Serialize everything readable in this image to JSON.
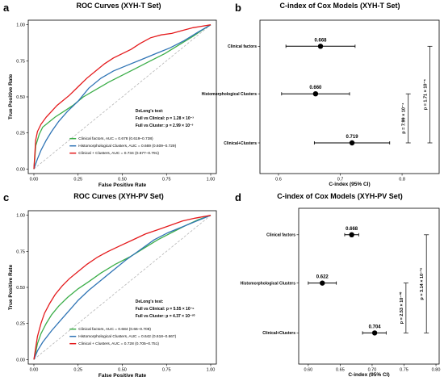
{
  "chart_data": [
    {
      "panel": "a",
      "type": "line",
      "title": "ROC Curves (XYH-T Set)",
      "xlabel": "False Positive Rate",
      "ylabel": "True Positive Rate",
      "xlim": [
        0,
        1
      ],
      "ylim": [
        0,
        1
      ],
      "xticks": [
        "0.00",
        "0.25",
        "0.50",
        "0.75",
        "1.00"
      ],
      "yticks": [
        "0.00",
        "0.25",
        "0.50",
        "0.75",
        "1.00"
      ],
      "legend_position": "bottom-right",
      "delong_title": "DeLong's test:",
      "delong_lines": [
        "Full vs Clinical: p = 1.28 × 10⁻³",
        "Full vs Cluster: p = 2.99 × 10⁻³"
      ],
      "diagonal": true,
      "series": [
        {
          "name": "Clinical factors, AUC = 0.678 (0.619–0.738)",
          "color": "#3cae49",
          "x": [
            0,
            0.005,
            0.01,
            0.03,
            0.05,
            0.08,
            0.12,
            0.17,
            0.22,
            0.28,
            0.35,
            0.42,
            0.5,
            0.58,
            0.66,
            0.74,
            0.82,
            0.9,
            0.96,
            1.0
          ],
          "y": [
            0,
            0.07,
            0.16,
            0.24,
            0.29,
            0.32,
            0.36,
            0.4,
            0.44,
            0.5,
            0.55,
            0.6,
            0.65,
            0.7,
            0.75,
            0.8,
            0.86,
            0.92,
            0.97,
            1.0
          ]
        },
        {
          "name": "Histomorphological Clusters, AUC = 0.669 (0.609–0.729)",
          "color": "#2f74b5",
          "x": [
            0,
            0.02,
            0.04,
            0.07,
            0.1,
            0.14,
            0.19,
            0.25,
            0.31,
            0.38,
            0.45,
            0.53,
            0.61,
            0.69,
            0.77,
            0.85,
            0.93,
            1.0
          ],
          "y": [
            0,
            0.07,
            0.13,
            0.2,
            0.26,
            0.33,
            0.4,
            0.47,
            0.56,
            0.63,
            0.68,
            0.72,
            0.76,
            0.8,
            0.84,
            0.89,
            0.95,
            1.0
          ]
        },
        {
          "name": "Clinical + Clusters, AUC = 0.734 (0.677–0.791)",
          "color": "#e41a1c",
          "x": [
            0,
            0.005,
            0.01,
            0.02,
            0.04,
            0.07,
            0.1,
            0.13,
            0.16,
            0.2,
            0.25,
            0.3,
            0.35,
            0.4,
            0.45,
            0.5,
            0.55,
            0.6,
            0.66,
            0.72,
            0.78,
            0.84,
            0.9,
            0.95,
            1.0
          ],
          "y": [
            0,
            0.1,
            0.2,
            0.26,
            0.31,
            0.36,
            0.4,
            0.44,
            0.47,
            0.51,
            0.57,
            0.63,
            0.68,
            0.73,
            0.77,
            0.8,
            0.83,
            0.87,
            0.91,
            0.93,
            0.94,
            0.96,
            0.98,
            0.99,
            1.0
          ]
        }
      ]
    },
    {
      "panel": "b",
      "type": "scatter",
      "title": "C-index of Cox Models (XYH-T Set)",
      "xlabel": "C-index (95% CI)",
      "xlim": [
        0.57,
        0.86
      ],
      "xticks": [
        0.6,
        0.7,
        0.8
      ],
      "categories": [
        "Clinical factors",
        "Histomorphological Clusters",
        "Clinical+Clusters"
      ],
      "values": [
        0.668,
        0.66,
        0.719
      ],
      "value_labels": [
        "0.668",
        "0.660",
        "0.719"
      ],
      "ci_low": [
        0.612,
        0.605,
        0.658
      ],
      "ci_high": [
        0.724,
        0.715,
        0.78
      ],
      "brackets": [
        {
          "from": "Histomorphological Clusters",
          "to": "Clinical+Clusters",
          "label": "p = 7.99 × 10⁻⁴",
          "x": 0.81
        },
        {
          "from": "Clinical factors",
          "to": "Clinical+Clusters",
          "label": "p = 1.71 × 10⁻⁶",
          "x": 0.845
        }
      ]
    },
    {
      "panel": "c",
      "type": "line",
      "title": "ROC Curves (XYH-PV Set)",
      "xlabel": "False Positive Rate",
      "ylabel": "True Positive Rate",
      "xlim": [
        0,
        1
      ],
      "ylim": [
        0,
        1
      ],
      "xticks": [
        "0.00",
        "0.25",
        "0.50",
        "0.75",
        "1.00"
      ],
      "yticks": [
        "0.00",
        "0.25",
        "0.50",
        "0.75",
        "1.00"
      ],
      "legend_position": "bottom-right",
      "delong_title": "DeLong's test:",
      "delong_lines": [
        "Full vs Clinical: p = 5.55 × 10⁻⁶",
        "Full vs Cluster: p = 4.37 × 10⁻¹⁰"
      ],
      "diagonal": true,
      "series": [
        {
          "name": "Clinical factors, AUC = 0.684 (0.66–0.708)",
          "color": "#3cae49",
          "x": [
            0,
            0.01,
            0.02,
            0.04,
            0.07,
            0.1,
            0.14,
            0.19,
            0.25,
            0.31,
            0.38,
            0.46,
            0.54,
            0.62,
            0.7,
            0.78,
            0.86,
            0.93,
            1.0
          ],
          "y": [
            0,
            0.05,
            0.11,
            0.18,
            0.25,
            0.31,
            0.37,
            0.43,
            0.49,
            0.54,
            0.6,
            0.66,
            0.71,
            0.77,
            0.83,
            0.88,
            0.93,
            0.97,
            1.0
          ]
        },
        {
          "name": "Histomorphological Clusters, AUC = 0.642 (0.618–0.667)",
          "color": "#2f74b5",
          "x": [
            0,
            0.02,
            0.05,
            0.1,
            0.15,
            0.2,
            0.25,
            0.31,
            0.38,
            0.45,
            0.52,
            0.6,
            0.68,
            0.76,
            0.84,
            0.92,
            1.0
          ],
          "y": [
            0,
            0.06,
            0.12,
            0.2,
            0.27,
            0.34,
            0.41,
            0.48,
            0.55,
            0.62,
            0.69,
            0.76,
            0.83,
            0.88,
            0.92,
            0.96,
            1.0
          ]
        },
        {
          "name": "Clinical + Clusters, AUC = 0.728 (0.705–0.751)",
          "color": "#e41a1c",
          "x": [
            0,
            0.01,
            0.02,
            0.04,
            0.06,
            0.09,
            0.12,
            0.16,
            0.2,
            0.25,
            0.3,
            0.36,
            0.42,
            0.49,
            0.56,
            0.63,
            0.7,
            0.77,
            0.84,
            0.91,
            1.0
          ],
          "y": [
            0,
            0.08,
            0.16,
            0.25,
            0.32,
            0.39,
            0.45,
            0.51,
            0.56,
            0.61,
            0.66,
            0.71,
            0.75,
            0.79,
            0.83,
            0.87,
            0.9,
            0.93,
            0.96,
            0.98,
            1.0
          ]
        }
      ]
    },
    {
      "panel": "d",
      "type": "scatter",
      "title": "C-index of Cox Models (XYH-PV Set)",
      "xlabel": "C-index (95% CI)",
      "xlim": [
        0.585,
        0.805
      ],
      "xticks": [
        "0.60",
        "0.65",
        "0.70",
        "0.75",
        "0.80"
      ],
      "categories": [
        "Clinical factors",
        "Histomorphological Clusters",
        "Clinical+Clusters"
      ],
      "values": [
        0.668,
        0.622,
        0.704
      ],
      "value_labels": [
        "0.668",
        "0.622",
        "0.704"
      ],
      "ci_low": [
        0.657,
        0.6,
        0.685
      ],
      "ci_high": [
        0.679,
        0.644,
        0.722
      ],
      "brackets": [
        {
          "from": "Histomorphological Clusters",
          "to": "Clinical+Clusters",
          "label": "p = 2.53 × 10⁻¹⁰",
          "x": 0.753
        },
        {
          "from": "Clinical factors",
          "to": "Clinical+Clusters",
          "label": "p = 3.14 × 10⁻¹⁶",
          "x": 0.785
        }
      ]
    }
  ]
}
